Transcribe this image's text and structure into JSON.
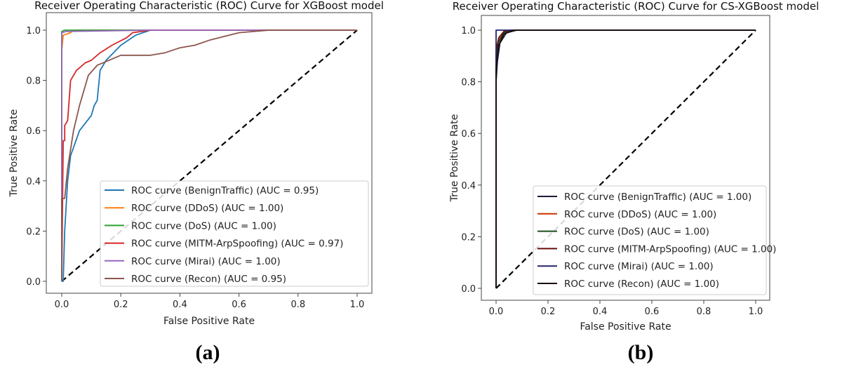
{
  "chart_data": [
    {
      "type": "line",
      "title": "Receiver Operating Characteristic (ROC) Curve for XGBoost model",
      "xlabel": "False Positive Rate",
      "ylabel": "True Positive Rate",
      "caption": "(a)",
      "xlim": [
        0,
        1
      ],
      "ylim": [
        0,
        1
      ],
      "xticks": [
        "0.0",
        "0.2",
        "0.4",
        "0.6",
        "0.8",
        "1.0"
      ],
      "yticks": [
        "0.0",
        "0.2",
        "0.4",
        "0.6",
        "0.8",
        "1.0"
      ],
      "grid": false,
      "legend_position": "lower-right",
      "diagonal": {
        "style": "dashed",
        "color": "#000000"
      },
      "series": [
        {
          "name": "ROC curve (BenignTraffic) (AUC = 0.95)",
          "color": "#1f77b4",
          "points": [
            [
              0,
              0
            ],
            [
              0.005,
              0
            ],
            [
              0.01,
              0.2
            ],
            [
              0.02,
              0.4
            ],
            [
              0.03,
              0.5
            ],
            [
              0.06,
              0.6
            ],
            [
              0.1,
              0.66
            ],
            [
              0.11,
              0.7
            ],
            [
              0.12,
              0.72
            ],
            [
              0.13,
              0.84
            ],
            [
              0.15,
              0.88
            ],
            [
              0.2,
              0.94
            ],
            [
              0.25,
              0.98
            ],
            [
              0.3,
              1.0
            ],
            [
              1,
              1
            ]
          ]
        },
        {
          "name": "ROC curve (DDoS) (AUC = 1.00)",
          "color": "#ff7f0e",
          "points": [
            [
              0,
              0
            ],
            [
              0,
              0.92
            ],
            [
              0.005,
              0.98
            ],
            [
              0.03,
              0.99
            ],
            [
              0.04,
              1.0
            ],
            [
              1,
              1
            ]
          ]
        },
        {
          "name": "ROC curve (DoS) (AUC = 1.00)",
          "color": "#2ca02c",
          "points": [
            [
              0,
              0
            ],
            [
              0,
              0.995
            ],
            [
              0.01,
              1.0
            ],
            [
              1,
              1
            ]
          ]
        },
        {
          "name": "ROC curve (MITM-ArpSpoofing) (AUC = 0.97)",
          "color": "#d62728",
          "points": [
            [
              0,
              0
            ],
            [
              0.005,
              0.56
            ],
            [
              0.01,
              0.56
            ],
            [
              0.01,
              0.62
            ],
            [
              0.02,
              0.64
            ],
            [
              0.03,
              0.8
            ],
            [
              0.05,
              0.84
            ],
            [
              0.08,
              0.87
            ],
            [
              0.1,
              0.88
            ],
            [
              0.13,
              0.91
            ],
            [
              0.17,
              0.94
            ],
            [
              0.22,
              0.97
            ],
            [
              0.24,
              0.99
            ],
            [
              0.3,
              1.0
            ],
            [
              1,
              1
            ]
          ]
        },
        {
          "name": "ROC curve (Mirai) (AUC = 1.00)",
          "color": "#9467bd",
          "points": [
            [
              0,
              0
            ],
            [
              0,
              0.99
            ],
            [
              0.015,
              0.995
            ],
            [
              0.3,
              1.0
            ],
            [
              1,
              1
            ]
          ]
        },
        {
          "name": "ROC curve (Recon) (AUC = 0.95)",
          "color": "#8c564b",
          "points": [
            [
              0,
              0
            ],
            [
              0,
              0.33
            ],
            [
              0.01,
              0.33
            ],
            [
              0.02,
              0.45
            ],
            [
              0.04,
              0.6
            ],
            [
              0.06,
              0.7
            ],
            [
              0.09,
              0.82
            ],
            [
              0.12,
              0.86
            ],
            [
              0.2,
              0.9
            ],
            [
              0.3,
              0.9
            ],
            [
              0.35,
              0.91
            ],
            [
              0.4,
              0.93
            ],
            [
              0.45,
              0.94
            ],
            [
              0.5,
              0.96
            ],
            [
              0.6,
              0.99
            ],
            [
              0.7,
              1.0
            ],
            [
              1,
              1
            ]
          ]
        }
      ]
    },
    {
      "type": "line",
      "title": "Receiver Operating Characteristic (ROC) Curve for CS-XGBoost model",
      "xlabel": "False Positive Rate",
      "ylabel": "True Positive Rate",
      "caption": "(b)",
      "xlim": [
        0,
        1
      ],
      "ylim": [
        0,
        1
      ],
      "xticks": [
        "0.0",
        "0.2",
        "0.4",
        "0.6",
        "0.8",
        "1.0"
      ],
      "yticks": [
        "0.0",
        "0.2",
        "0.4",
        "0.6",
        "0.8",
        "1.0"
      ],
      "grid": false,
      "legend_position": "lower-right",
      "diagonal": {
        "style": "dashed",
        "color": "#000000"
      },
      "series": [
        {
          "name": "ROC curve (BenignTraffic) (AUC = 1.00)",
          "color": "#1a1a3a",
          "points": [
            [
              0,
              0
            ],
            [
              0,
              0.8
            ],
            [
              0.005,
              0.88
            ],
            [
              0.015,
              0.95
            ],
            [
              0.04,
              0.99
            ],
            [
              0.08,
              1.0
            ],
            [
              1,
              1
            ]
          ]
        },
        {
          "name": "ROC curve (DDoS) (AUC = 1.00)",
          "color": "#cc3300",
          "points": [
            [
              0,
              0
            ],
            [
              0,
              0.9
            ],
            [
              0.01,
              0.96
            ],
            [
              0.03,
              0.99
            ],
            [
              0.06,
              1.0
            ],
            [
              1,
              1
            ]
          ]
        },
        {
          "name": "ROC curve (DoS) (AUC = 1.00)",
          "color": "#1f4d1f",
          "points": [
            [
              0,
              0
            ],
            [
              0,
              0.88
            ],
            [
              0.008,
              0.95
            ],
            [
              0.03,
              0.99
            ],
            [
              0.06,
              1.0
            ],
            [
              1,
              1
            ]
          ]
        },
        {
          "name": "ROC curve (MITM-ArpSpoofing) (AUC = 1.00)",
          "color": "#6b0a0a",
          "points": [
            [
              0,
              0
            ],
            [
              0,
              0.92
            ],
            [
              0.01,
              0.97
            ],
            [
              0.03,
              0.995
            ],
            [
              0.05,
              1.0
            ],
            [
              1,
              1
            ]
          ]
        },
        {
          "name": "ROC curve (Mirai) (AUC = 1.00)",
          "color": "#24246b",
          "points": [
            [
              0,
              0
            ],
            [
              0,
              1.0
            ],
            [
              1,
              1
            ]
          ]
        },
        {
          "name": "ROC curve (Recon) (AUC = 1.00)",
          "color": "#1a0a0a",
          "points": [
            [
              0,
              0
            ],
            [
              0,
              0.85
            ],
            [
              0.01,
              0.94
            ],
            [
              0.03,
              0.985
            ],
            [
              0.07,
              1.0
            ],
            [
              1,
              1
            ]
          ]
        }
      ]
    }
  ]
}
